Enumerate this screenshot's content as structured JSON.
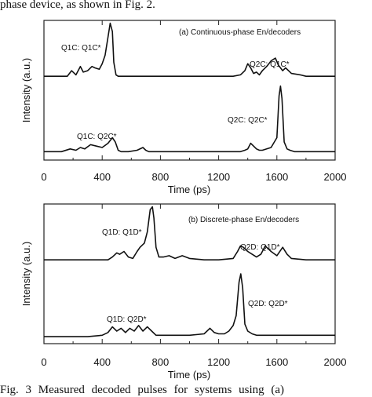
{
  "caption_top": "phase device, as shown in Fig. 2.",
  "caption_bottom": "Fig. 3 Measured decoded pulses for systems using (a)",
  "chart_data": [
    {
      "type": "line",
      "title": "(a) Continuous-phase En/decoders",
      "xlabel": "Time (ps)",
      "ylabel": "Intensity (a.u.)",
      "xlim": [
        0,
        2000
      ],
      "ylim": [
        0,
        100
      ],
      "xticks": [
        0,
        400,
        800,
        1200,
        1600,
        2000
      ],
      "x_tick_labels": [
        "0",
        "400",
        "800",
        "1200",
        "1600",
        "2000"
      ],
      "grid": false,
      "legend": "none",
      "series": [
        {
          "x": [
            0,
            160,
            190,
            220,
            250,
            270,
            300,
            330,
            350,
            380,
            400,
            420,
            440,
            455,
            470,
            480,
            495,
            510,
            530,
            600,
            800,
            1000,
            1200,
            1300,
            1350,
            1380,
            1400,
            1420,
            1440,
            1460,
            1480,
            1500,
            1530,
            1560,
            1590,
            1610,
            1640,
            1660,
            1700,
            1760,
            1800,
            1900,
            2000
          ],
          "y": [
            60,
            60,
            64,
            61,
            67,
            63,
            64,
            67,
            66,
            65,
            69,
            75,
            88,
            98,
            92,
            70,
            61,
            60,
            60,
            60,
            60,
            60,
            60,
            60,
            61,
            64,
            69,
            66,
            62,
            63,
            61,
            64,
            67,
            71,
            73,
            68,
            64,
            66,
            62,
            61,
            60,
            60,
            60
          ]
        },
        {
          "x": [
            0,
            120,
            180,
            220,
            250,
            280,
            320,
            360,
            400,
            440,
            470,
            490,
            510,
            530,
            580,
            640,
            680,
            700,
            720,
            800,
            1000,
            1200,
            1350,
            1380,
            1400,
            1420,
            1440,
            1460,
            1480,
            1500,
            1560,
            1600,
            1615,
            1625,
            1635,
            1650,
            1670,
            1690,
            1720,
            1800,
            2000
          ],
          "y": [
            6,
            6,
            8,
            7,
            9,
            8,
            11,
            10,
            9,
            12,
            16,
            13,
            7,
            6,
            6,
            7,
            9,
            7,
            6,
            6,
            6,
            6,
            6,
            7,
            8,
            12,
            10,
            8,
            7,
            7,
            9,
            16,
            46,
            53,
            44,
            13,
            8,
            7,
            6,
            6,
            6
          ]
        }
      ],
      "annotations": [
        "Q1C: Q1C*",
        "Q2C: Q1C*",
        "Q1C: Q2C*",
        "Q2C: Q2C*"
      ]
    },
    {
      "type": "line",
      "title": "(b) Discrete-phase En/decoders",
      "xlabel": "Time (ps)",
      "ylabel": "Intensity (a.u.)",
      "xlim": [
        0,
        2000
      ],
      "ylim": [
        0,
        100
      ],
      "xticks": [
        0,
        400,
        800,
        1200,
        1600,
        2000
      ],
      "x_tick_labels": [
        "0",
        "400",
        "800",
        "1200",
        "1600",
        "2000"
      ],
      "grid": false,
      "legend": "none",
      "series": [
        {
          "x": [
            0,
            300,
            380,
            440,
            470,
            500,
            520,
            550,
            580,
            610,
            640,
            660,
            690,
            710,
            730,
            745,
            755,
            770,
            790,
            820,
            860,
            900,
            950,
            1000,
            1100,
            1200,
            1300,
            1330,
            1350,
            1370,
            1400,
            1430,
            1460,
            1490,
            1520,
            1560,
            1600,
            1640,
            1670,
            1700,
            1800,
            2000
          ],
          "y": [
            60,
            60,
            60,
            60,
            62,
            65,
            64,
            66,
            62,
            61,
            66,
            69,
            72,
            80,
            96,
            98,
            90,
            69,
            62,
            62,
            63,
            61,
            63,
            61,
            60,
            60,
            61,
            66,
            70,
            69,
            66,
            64,
            62,
            64,
            70,
            66,
            63,
            69,
            64,
            61,
            60,
            60
          ]
        },
        {
          "x": [
            0,
            300,
            400,
            440,
            470,
            500,
            530,
            560,
            590,
            620,
            650,
            680,
            710,
            740,
            770,
            800,
            900,
            1000,
            1100,
            1140,
            1170,
            1200,
            1240,
            1270,
            1300,
            1320,
            1340,
            1352,
            1365,
            1380,
            1400,
            1430,
            1460,
            1500,
            1550,
            1600,
            1650,
            1700,
            1800,
            2000
          ],
          "y": [
            5,
            5,
            6,
            8,
            12,
            9,
            11,
            8,
            11,
            9,
            13,
            9,
            12,
            9,
            6,
            6,
            6,
            6,
            7,
            11,
            8,
            7,
            7,
            9,
            13,
            20,
            44,
            50,
            40,
            14,
            9,
            7,
            6,
            6,
            6,
            6,
            6,
            6,
            6,
            6
          ]
        }
      ],
      "annotations": [
        "Q1D: Q1D*",
        "Q2D: Q1D*",
        "Q1D: Q2D*",
        "Q2D: Q2D*"
      ]
    }
  ]
}
